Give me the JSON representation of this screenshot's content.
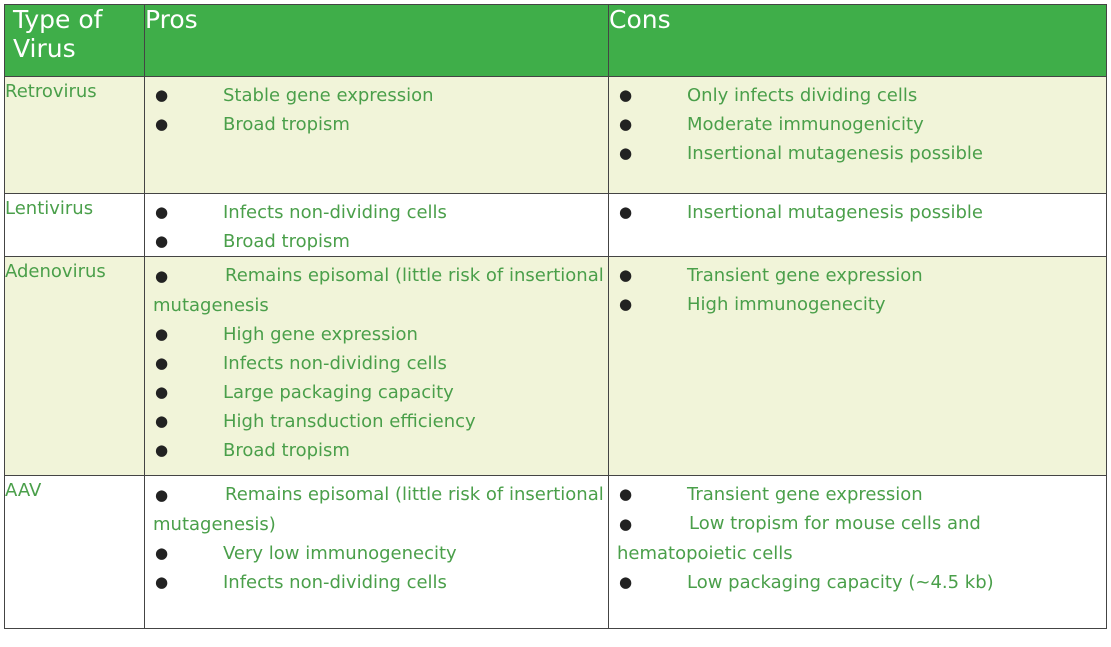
{
  "header": {
    "type": "Type of Virus",
    "pros": "Pros",
    "cons": "Cons"
  },
  "rows": [
    {
      "type": "Retrovirus",
      "pros": [
        "Stable gene expression",
        "Broad tropism"
      ],
      "cons": [
        "Only infects dividing cells",
        "Moderate immunogenicity",
        "Insertional mutagenesis possible"
      ]
    },
    {
      "type": "Lentivirus",
      "pros": [
        "Infects non-dividing cells",
        "Broad tropism"
      ],
      "cons": [
        "Insertional mutagenesis possible"
      ]
    },
    {
      "type": "Adenovirus",
      "pros": [
        "Remains episomal (little risk of insertional mutagenesis",
        "High gene expression",
        "Infects non-dividing cells",
        "Large packaging capacity",
        "High transduction efficiency",
        "Broad tropism"
      ],
      "cons": [
        "Transient gene expression",
        "High immunogenecity"
      ]
    },
    {
      "type": "AAV",
      "pros": [
        "Remains episomal (little risk of insertional mutagenesis)",
        "Very low immunogenecity",
        "Infects non-dividing cells"
      ],
      "cons": [
        "Transient gene expression",
        "Low tropism for mouse cells and hematopoietic cells",
        "Low packaging capacity (~4.5 kb)"
      ]
    }
  ],
  "colors": {
    "header_bg": "#3fae49",
    "header_text": "#ffffff",
    "alt_row_bg": "#f1f4d9",
    "body_text": "#4a9f4a",
    "border": "#444444"
  }
}
